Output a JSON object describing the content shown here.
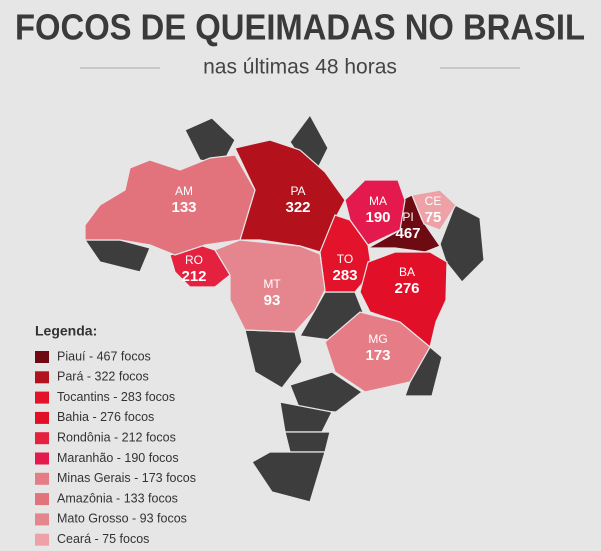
{
  "header": {
    "title": "FOCOS DE QUEIMADAS NO BRASIL",
    "subtitle": "nas últimas 48 horas"
  },
  "legend": {
    "title": "Legenda:"
  },
  "states": [
    {
      "abbr": "PI",
      "value": 467,
      "legend": "Piauí - 467 focos",
      "color": "#6e0b12"
    },
    {
      "abbr": "PA",
      "value": 322,
      "legend": "Pará - 322 focos",
      "color": "#b3121c"
    },
    {
      "abbr": "TO",
      "value": 283,
      "legend": "Tocantins - 283 focos",
      "color": "#e3132b"
    },
    {
      "abbr": "BA",
      "value": 276,
      "legend": "Bahia - 276 focos",
      "color": "#e10f28"
    },
    {
      "abbr": "RO",
      "value": 212,
      "legend": "Rondônia - 212 focos",
      "color": "#e4213f"
    },
    {
      "abbr": "MA",
      "value": 190,
      "legend": "Maranhão - 190 focos",
      "color": "#e4194d"
    },
    {
      "abbr": "MG",
      "value": 173,
      "legend": "Minas Gerais - 173 focos",
      "color": "#e67d86"
    },
    {
      "abbr": "AM",
      "value": 133,
      "legend": "Amazônia - 133 focos",
      "color": "#e2737c"
    },
    {
      "abbr": "MT",
      "value": 93,
      "legend": "Mato Grosso - 93 focos",
      "color": "#e5868e"
    },
    {
      "abbr": "CE",
      "value": 75,
      "legend": "Ceará - 75 focos",
      "color": "#eea2a8"
    }
  ]
}
